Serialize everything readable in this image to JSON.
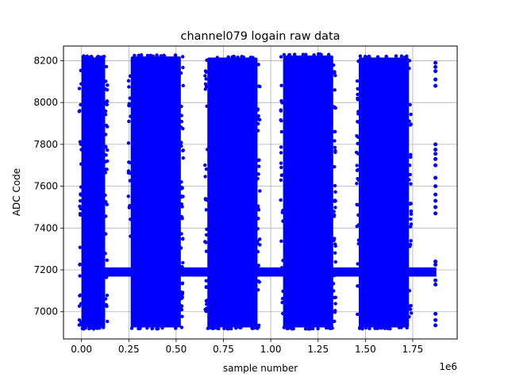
{
  "chart_data": {
    "type": "scatter",
    "title": "channel079 logain raw data",
    "xlabel": "sample number",
    "ylabel": "ADC Code",
    "x_offset_label": "1e6",
    "x_scale": 1000000,
    "xlim": [
      -0.095,
      1.985
    ],
    "ylim": [
      6870,
      8270
    ],
    "x_ticks": [
      0.0,
      0.25,
      0.5,
      0.75,
      1.0,
      1.25,
      1.5,
      1.75
    ],
    "x_tick_labels": [
      "0.00",
      "0.25",
      "0.50",
      "0.75",
      "1.00",
      "1.25",
      "1.50",
      "1.75"
    ],
    "y_ticks": [
      7000,
      7200,
      7400,
      7600,
      7800,
      8000,
      8200
    ],
    "y_tick_labels": [
      "7000",
      "7200",
      "7400",
      "7600",
      "7800",
      "8000",
      "8200"
    ],
    "grid": true,
    "marker_color": "#0000ff",
    "baseline": {
      "y_low": 7168,
      "y_high": 7212,
      "x_start": 0.0,
      "x_end": 1.875
    },
    "bursts": [
      {
        "x_start": 0.0,
        "x_end": 0.125,
        "y_min": 6925,
        "y_max": 8215
      },
      {
        "x_start": 0.26,
        "x_end": 0.525,
        "y_min": 6925,
        "y_max": 8220
      },
      {
        "x_start": 0.665,
        "x_end": 0.93,
        "y_min": 6925,
        "y_max": 8215
      },
      {
        "x_start": 1.065,
        "x_end": 1.33,
        "y_min": 6925,
        "y_max": 8225
      },
      {
        "x_start": 1.465,
        "x_end": 1.73,
        "y_min": 6925,
        "y_max": 8215
      }
    ],
    "tail_points": [
      {
        "x": 1.87,
        "y": 8190
      },
      {
        "x": 1.87,
        "y": 8170
      },
      {
        "x": 1.87,
        "y": 8150
      },
      {
        "x": 1.87,
        "y": 8110
      },
      {
        "x": 1.87,
        "y": 8080
      },
      {
        "x": 1.87,
        "y": 7800
      },
      {
        "x": 1.87,
        "y": 7775
      },
      {
        "x": 1.87,
        "y": 7755
      },
      {
        "x": 1.87,
        "y": 7730
      },
      {
        "x": 1.87,
        "y": 7700
      },
      {
        "x": 1.87,
        "y": 7640
      },
      {
        "x": 1.87,
        "y": 7600
      },
      {
        "x": 1.87,
        "y": 7560
      },
      {
        "x": 1.87,
        "y": 7530
      },
      {
        "x": 1.87,
        "y": 7500
      },
      {
        "x": 1.87,
        "y": 7470
      },
      {
        "x": 1.87,
        "y": 7240
      },
      {
        "x": 1.87,
        "y": 7225
      },
      {
        "x": 1.87,
        "y": 7150
      },
      {
        "x": 1.87,
        "y": 7130
      },
      {
        "x": 1.87,
        "y": 6990
      },
      {
        "x": 1.87,
        "y": 6960
      },
      {
        "x": 1.87,
        "y": 6935
      }
    ]
  }
}
